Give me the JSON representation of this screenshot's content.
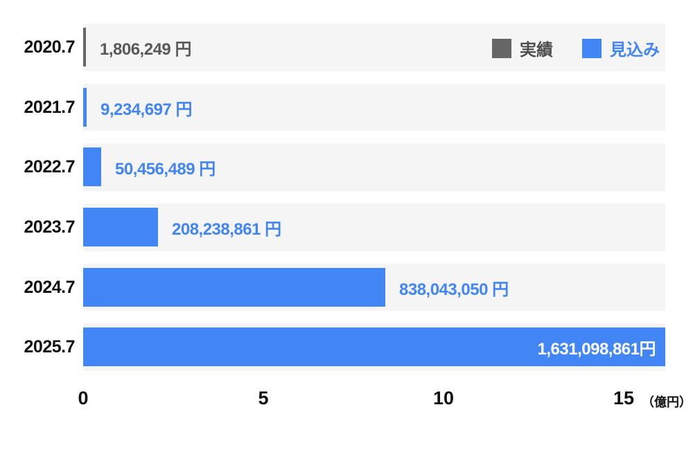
{
  "chart_data": {
    "type": "bar",
    "orientation": "horizontal",
    "categories": [
      "2020.7",
      "2021.7",
      "2022.7",
      "2023.7",
      "2024.7",
      "2025.7"
    ],
    "values": [
      1806249,
      9234697,
      50456489,
      208238861,
      838043050,
      1631098861
    ],
    "value_labels": [
      "1,806,249 円",
      "9,234,697 円",
      "50,456,489 円",
      "208,238,861 円",
      "838,043,050 円",
      "1,631,098,861円"
    ],
    "series_membership": [
      "actual",
      "forecast",
      "forecast",
      "forecast",
      "forecast",
      "forecast"
    ],
    "label_inside": [
      false,
      false,
      false,
      false,
      false,
      true
    ],
    "x_ticks": [
      0,
      5,
      10,
      15
    ],
    "x_unit_label": "（億円）",
    "xlim_oku": [
      0,
      16.15
    ],
    "grid": false,
    "legend_position": "top-right",
    "legend": [
      {
        "id": "actual",
        "label": "実績"
      },
      {
        "id": "forecast",
        "label": "見込み"
      }
    ],
    "colors": {
      "actual": "#666666",
      "forecast": "#4285f4",
      "label_actual": "#595959",
      "label_forecast": "#4285f4",
      "label_inside_bar": "#ffffff",
      "legend_label_actual": "#4d4d4d",
      "legend_label_forecast": "#4285f4",
      "row_band": "#f5f5f5",
      "axis_text": "#111111"
    }
  }
}
